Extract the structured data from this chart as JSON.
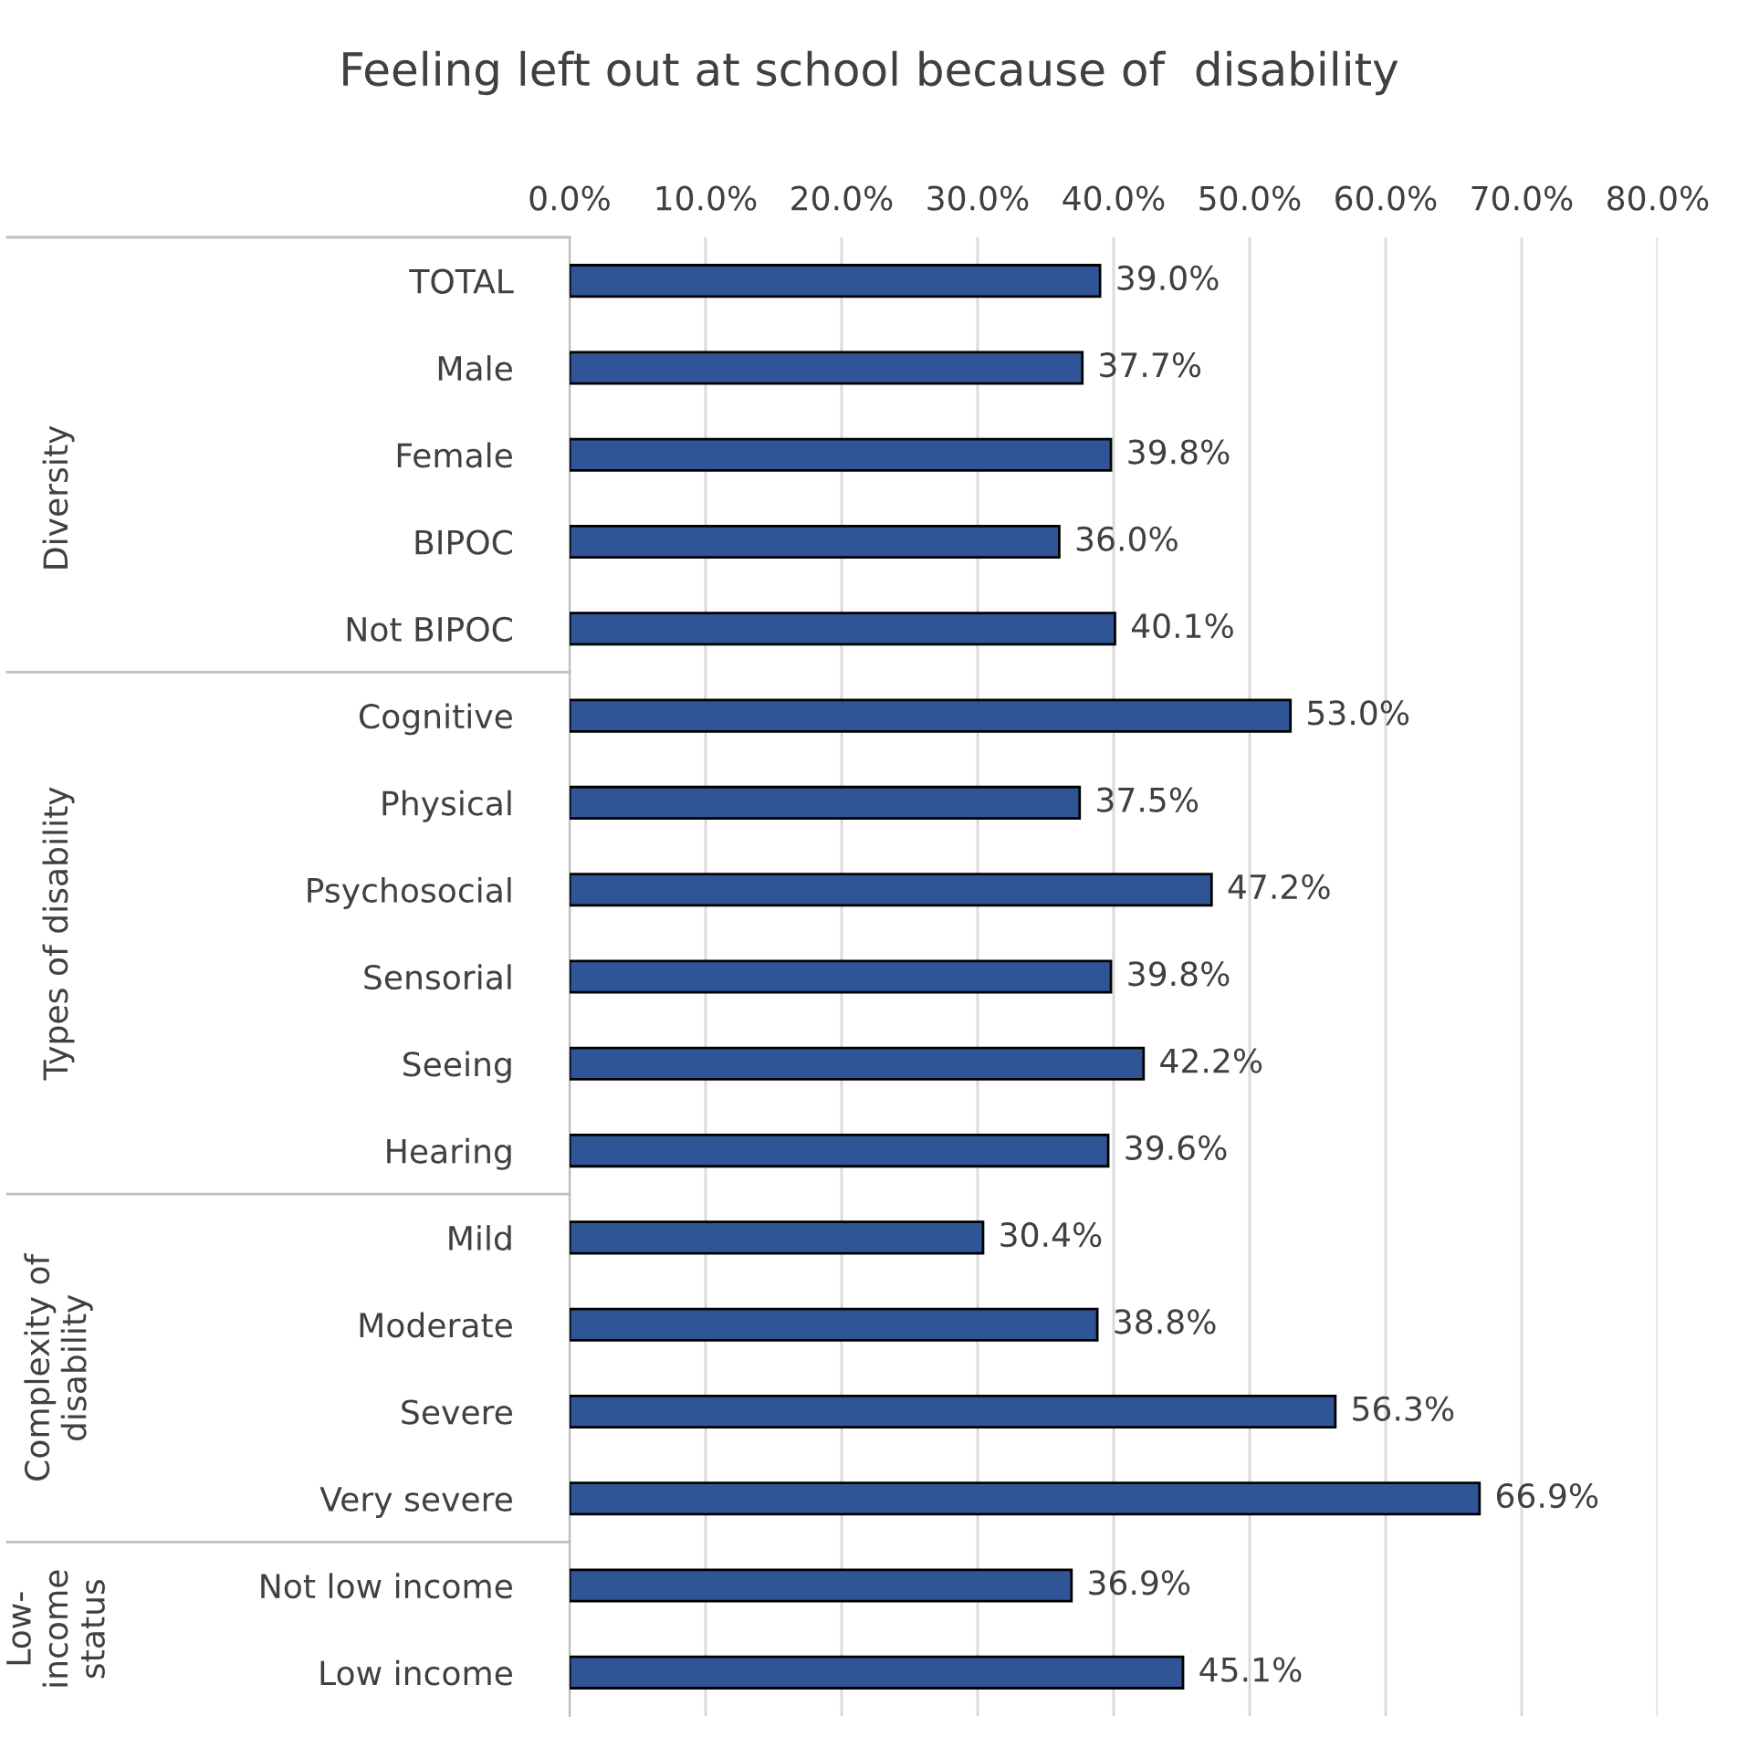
{
  "chart_data": {
    "type": "bar",
    "orientation": "horizontal",
    "title": "Feeling left out at school because of  disability",
    "categories": [
      "TOTAL",
      "Male",
      "Female",
      "BIPOC",
      "Not BIPOC",
      "Cognitive",
      "Physical",
      "Psychosocial",
      "Sensorial",
      "Seeing",
      "Hearing",
      "Mild",
      "Moderate",
      "Severe",
      "Very severe",
      "Not low income",
      "Low income"
    ],
    "values": [
      39.0,
      37.7,
      39.8,
      36.0,
      40.1,
      53.0,
      37.5,
      47.2,
      39.8,
      42.2,
      39.6,
      30.4,
      38.8,
      56.3,
      66.9,
      36.9,
      45.1
    ],
    "value_labels": [
      "39.0%",
      "37.7%",
      "39.8%",
      "36.0%",
      "40.1%",
      "53.0%",
      "37.5%",
      "47.2%",
      "39.8%",
      "42.2%",
      "39.6%",
      "30.4%",
      "38.8%",
      "56.3%",
      "66.9%",
      "36.9%",
      "45.1%"
    ],
    "color": "#2f5597",
    "xlim": [
      0,
      80
    ],
    "xticks": [
      {
        "value": 0,
        "label": "0.0%"
      },
      {
        "value": 10,
        "label": "10.0%"
      },
      {
        "value": 20,
        "label": "20.0%"
      },
      {
        "value": 30,
        "label": "30.0%"
      },
      {
        "value": 40,
        "label": "40.0%"
      },
      {
        "value": 50,
        "label": "50.0%"
      },
      {
        "value": 60,
        "label": "60.0%"
      },
      {
        "value": 70,
        "label": "70.0%"
      },
      {
        "value": 80,
        "label": "80.0%"
      }
    ],
    "grid": "x",
    "annotations": [
      "Diversity",
      "Types of disability",
      "Complexity of\ndisability",
      "Low-\nincome\nstatus"
    ]
  }
}
